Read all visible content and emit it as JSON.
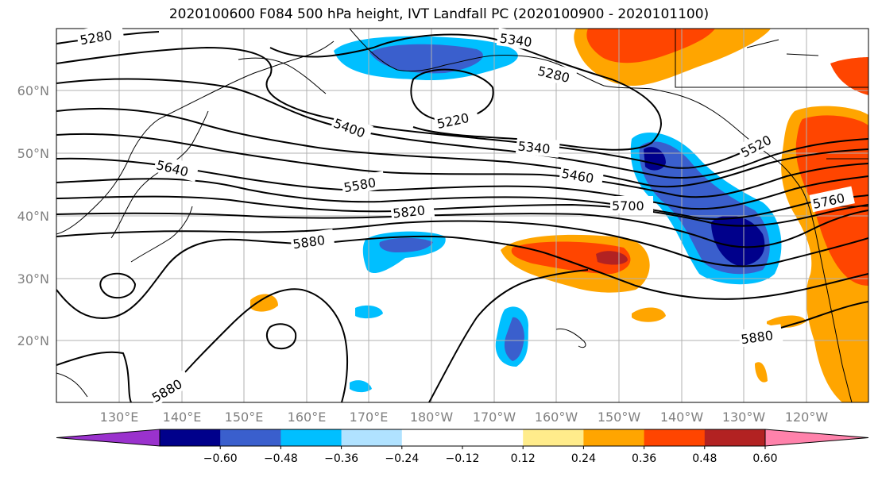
{
  "title": "2020100600 F084 500 hPa height, IVT Landfall PC (2020100900 - 2020101100)",
  "map": {
    "latitude_labels": [
      "60°N",
      "50°N",
      "40°N",
      "30°N",
      "20°N"
    ],
    "longitude_labels": [
      "130°E",
      "140°E",
      "150°E",
      "160°E",
      "170°E",
      "180°W",
      "170°W",
      "160°W",
      "150°W",
      "140°W",
      "130°W",
      "120°W"
    ],
    "gridlines": true,
    "coastlines": true
  },
  "contour_labels": [
    {
      "id": "c5280a",
      "text": "5280"
    },
    {
      "id": "c5340a",
      "text": "5340"
    },
    {
      "id": "c5280b",
      "text": "5280"
    },
    {
      "id": "c5220",
      "text": "5220"
    },
    {
      "id": "c5400",
      "text": "5400"
    },
    {
      "id": "c5340b",
      "text": "5340"
    },
    {
      "id": "c5520",
      "text": "5520"
    },
    {
      "id": "c5640",
      "text": "5640"
    },
    {
      "id": "c5460",
      "text": "5460"
    },
    {
      "id": "c5580",
      "text": "5580"
    },
    {
      "id": "c5700",
      "text": "5700"
    },
    {
      "id": "c5760",
      "text": "5760"
    },
    {
      "id": "c5820",
      "text": "5820"
    },
    {
      "id": "c5880a",
      "text": "5880"
    },
    {
      "id": "c5880b",
      "text": "5880"
    },
    {
      "id": "c5880c",
      "text": "5880"
    }
  ],
  "colorbar": {
    "colors": [
      "#9a32cd",
      "#00008b",
      "#3a5fcd",
      "#00bfff",
      "#b0e2ff",
      "#ffffff",
      "#ffffff",
      "#ffec8b",
      "#ffa500",
      "#ff4500",
      "#b22222",
      "#ff82ab"
    ],
    "tick_labels": [
      "−0.60",
      "−0.48",
      "−0.36",
      "−0.24",
      "−0.12",
      "0.12",
      "0.24",
      "0.36",
      "0.48",
      "0.60"
    ]
  }
}
